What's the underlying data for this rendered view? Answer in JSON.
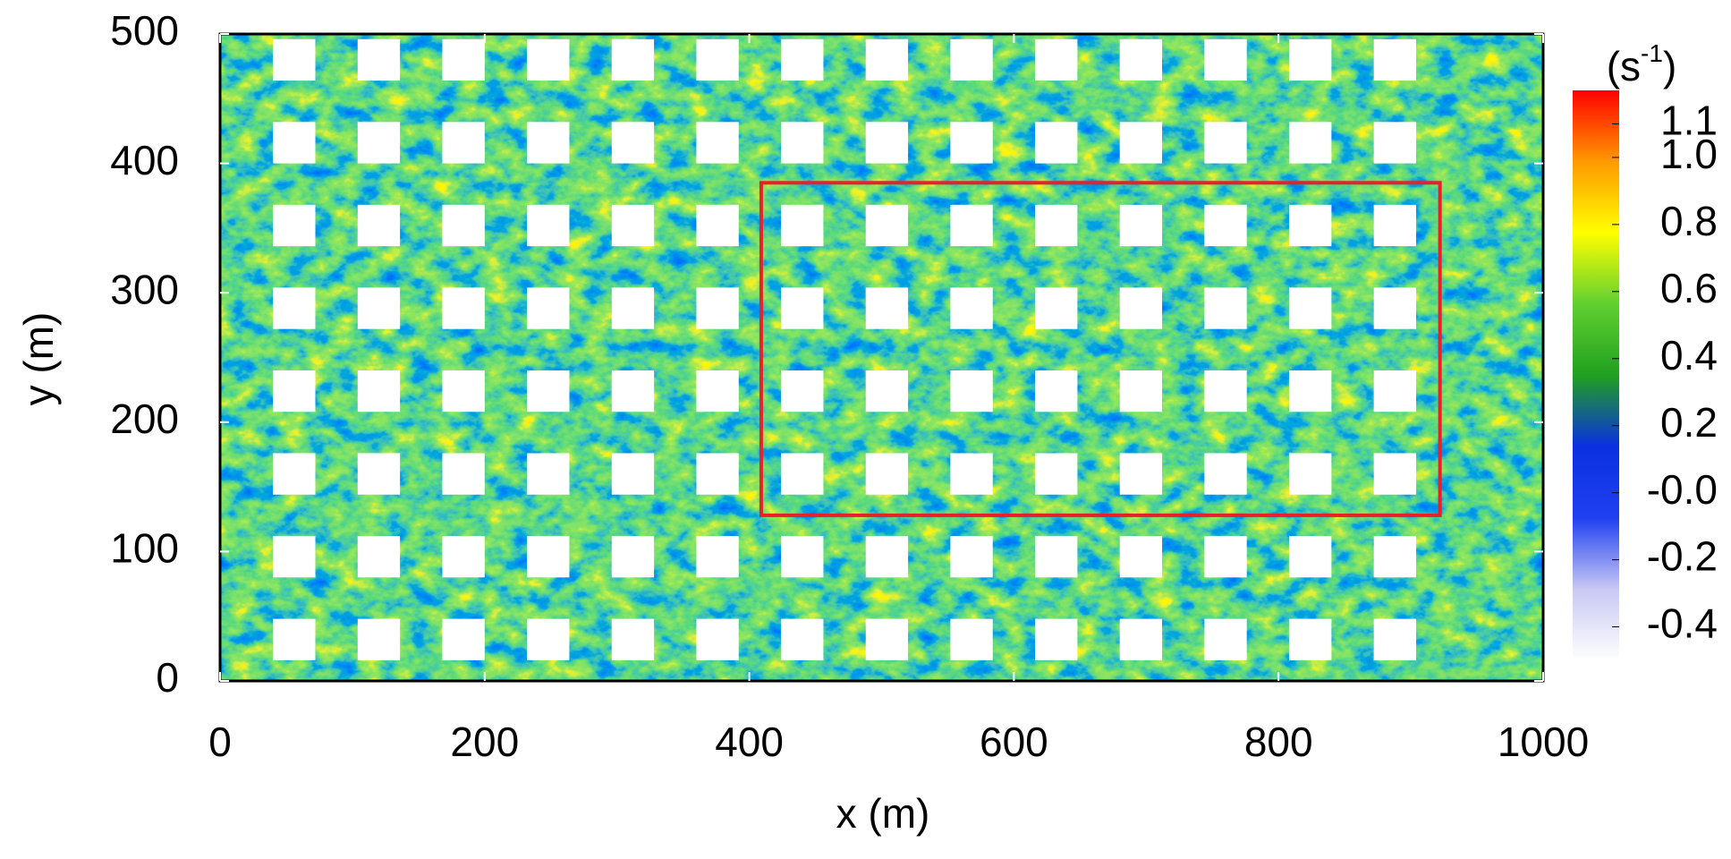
{
  "chart_data": {
    "type": "contour",
    "xlabel": "x (m)",
    "ylabel": "y (m)",
    "xlim": [
      0,
      1000
    ],
    "ylim": [
      0,
      500
    ],
    "xticks": [
      0,
      200,
      400,
      600,
      800,
      1000
    ],
    "yticks": [
      0,
      100,
      200,
      300,
      400,
      500
    ],
    "buildings": {
      "x": [
        56,
        120,
        184,
        248,
        312,
        376,
        440,
        504,
        568,
        632,
        696,
        760,
        824,
        888
      ],
      "y": [
        32,
        96,
        160,
        224,
        288,
        352,
        416,
        480
      ],
      "size": 32,
      "color": "#ffffff"
    },
    "region": {
      "x": [
        409,
        922
      ],
      "y": [
        128,
        385
      ],
      "color": "#e8202a"
    },
    "colorbar": {
      "label": "(s",
      "label_sup": "-1",
      "label_end": ")",
      "lim": [
        -0.5,
        1.2
      ],
      "ticks": [
        -0.4,
        -0.2,
        {
          "value": 0,
          "label": "-0.0"
        },
        0.2,
        0.4,
        0.6,
        0.8,
        {
          "value": 1,
          "label": "1.0"
        },
        1.1
      ],
      "colors": [
        "#ffffff",
        "#c8c8f4",
        "#2040f0",
        "#0a30e0",
        "#20a020",
        "#60d030",
        "#ffff00",
        "#ff9900",
        "#ff0000"
      ]
    }
  }
}
